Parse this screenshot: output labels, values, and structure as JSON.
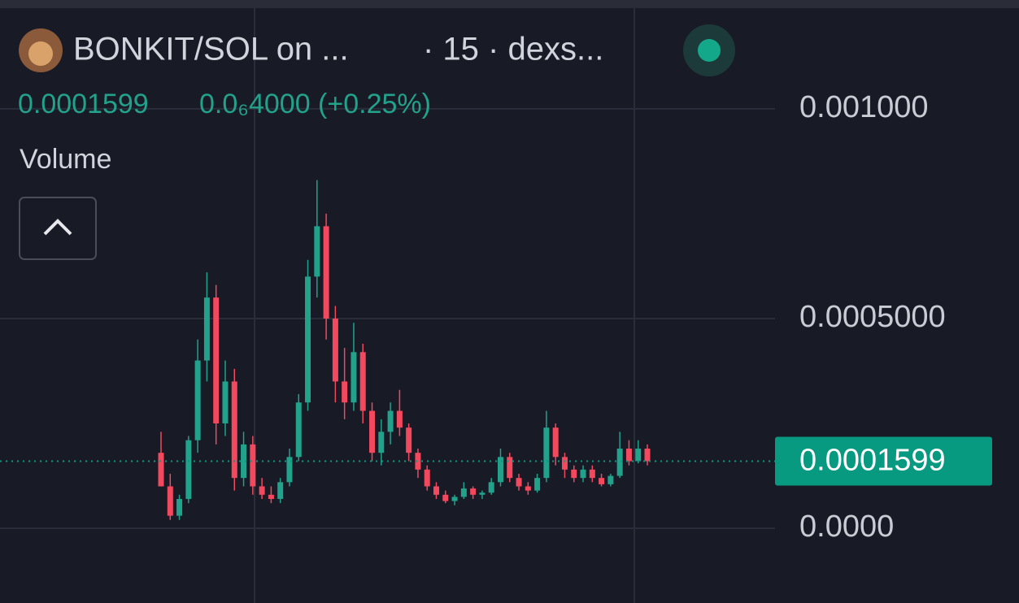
{
  "header": {
    "pair": "BONKIT/SOL on ...",
    "meta": "· 15 · dexs...",
    "change": "0.0₆4000 (+0.25%)",
    "indicator": "Volume"
  },
  "chart_data": {
    "type": "candlestick",
    "up_color": "#22a18b",
    "down_color": "#f2495e",
    "last_price": 0.0001599,
    "last_price_color": "#089981",
    "ylim": [
      -0.000178,
      0.001236
    ],
    "yticks": [
      {
        "value": 0,
        "label": "0.0000"
      },
      {
        "value": 0.0005,
        "label": "0.0005000"
      },
      {
        "value": 0.001,
        "label": "0.001000"
      }
    ],
    "grid": true,
    "ohlc": [
      [
        0.00018,
        0.00023,
        0.0001,
        0.0001
      ],
      [
        0.0001,
        0.00013,
        2e-05,
        3e-05
      ],
      [
        3e-05,
        8e-05,
        2e-05,
        7e-05
      ],
      [
        7e-05,
        0.00022,
        6e-05,
        0.00021
      ],
      [
        0.00021,
        0.00045,
        0.00018,
        0.0004
      ],
      [
        0.0004,
        0.00061,
        0.00035,
        0.00055
      ],
      [
        0.00055,
        0.00058,
        0.0002,
        0.00025
      ],
      [
        0.00025,
        0.0004,
        0.00022,
        0.00035
      ],
      [
        0.00035,
        0.00038,
        9e-05,
        0.00012
      ],
      [
        0.00012,
        0.00023,
        0.0001,
        0.0002
      ],
      [
        0.0002,
        0.00022,
        8e-05,
        0.0001
      ],
      [
        0.0001,
        0.00012,
        7e-05,
        8e-05
      ],
      [
        8e-05,
        0.0001,
        6e-05,
        7e-05
      ],
      [
        7e-05,
        0.00012,
        6e-05,
        0.00011
      ],
      [
        0.00011,
        0.00019,
        0.0001,
        0.00017
      ],
      [
        0.00017,
        0.00032,
        0.00016,
        0.0003
      ],
      [
        0.0003,
        0.00064,
        0.00028,
        0.0006
      ],
      [
        0.0006,
        0.00083,
        0.00055,
        0.00072
      ],
      [
        0.00072,
        0.00075,
        0.00045,
        0.0005
      ],
      [
        0.0005,
        0.00053,
        0.0003,
        0.00035
      ],
      [
        0.00035,
        0.00043,
        0.00026,
        0.0003
      ],
      [
        0.0003,
        0.00049,
        0.00028,
        0.00042
      ],
      [
        0.00042,
        0.00044,
        0.00025,
        0.00028
      ],
      [
        0.00028,
        0.0003,
        0.00016,
        0.00018
      ],
      [
        0.00018,
        0.00026,
        0.00015,
        0.00023
      ],
      [
        0.00023,
        0.0003,
        0.0002,
        0.00028
      ],
      [
        0.00028,
        0.00033,
        0.00022,
        0.00024
      ],
      [
        0.00024,
        0.00025,
        0.00016,
        0.00018
      ],
      [
        0.00018,
        0.00019,
        0.00012,
        0.00014
      ],
      [
        0.00014,
        0.00015,
        9e-05,
        0.0001
      ],
      [
        0.0001,
        0.00011,
        7e-05,
        8e-05
      ],
      [
        8e-05,
        9e-05,
        6e-05,
        6.5e-05
      ],
      [
        6.5e-05,
        8e-05,
        5.5e-05,
        7.5e-05
      ],
      [
        7.5e-05,
        0.00011,
        7e-05,
        9.5e-05
      ],
      [
        9.5e-05,
        0.0001,
        7e-05,
        8e-05
      ],
      [
        8e-05,
        9e-05,
        7e-05,
        8.5e-05
      ],
      [
        8.5e-05,
        0.00012,
        8e-05,
        0.00011
      ],
      [
        0.00011,
        0.00019,
        0.0001,
        0.00017
      ],
      [
        0.00017,
        0.00018,
        0.00011,
        0.00012
      ],
      [
        0.00012,
        0.00013,
        9e-05,
        0.0001
      ],
      [
        0.0001,
        0.00011,
        8e-05,
        9e-05
      ],
      [
        9e-05,
        0.00013,
        8.5e-05,
        0.00012
      ],
      [
        0.00012,
        0.00028,
        0.00011,
        0.00024
      ],
      [
        0.00024,
        0.00025,
        0.00015,
        0.00017
      ],
      [
        0.00017,
        0.00018,
        0.00012,
        0.00014
      ],
      [
        0.00014,
        0.00015,
        0.00011,
        0.00012
      ],
      [
        0.00012,
        0.00015,
        0.00011,
        0.00014
      ],
      [
        0.00014,
        0.00015,
        0.00011,
        0.00012
      ],
      [
        0.00012,
        0.00013,
        0.0001,
        0.000105
      ],
      [
        0.000105,
        0.00013,
        0.0001,
        0.000125
      ],
      [
        0.000125,
        0.00023,
        0.00012,
        0.00019
      ],
      [
        0.00019,
        0.00021,
        0.00015,
        0.00016
      ],
      [
        0.00016,
        0.00021,
        0.000155,
        0.00019
      ],
      [
        0.00019,
        0.0002,
        0.00015,
        0.00016
      ]
    ]
  }
}
